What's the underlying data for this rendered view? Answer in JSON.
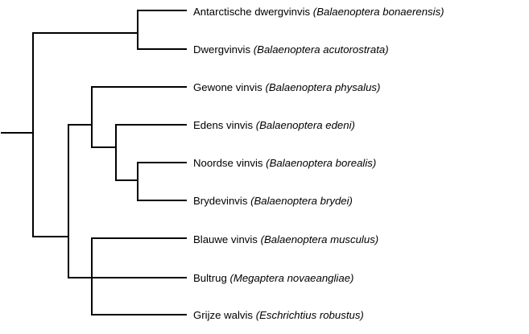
{
  "tree": {
    "line_color": "#000000",
    "leaves": [
      {
        "common": "Antarctische dwergvinvis",
        "scientific": "(Balaenoptera bonaerensis)"
      },
      {
        "common": "Dwergvinvis",
        "scientific": "(Balaenoptera acutorostrata)"
      },
      {
        "common": "Gewone vinvis",
        "scientific": "(Balaenoptera physalus)"
      },
      {
        "common": "Edens vinvis",
        "scientific": "(Balaenoptera edeni)"
      },
      {
        "common": "Noordse vinvis",
        "scientific": "(Balaenoptera borealis)"
      },
      {
        "common": "Brydevinvis",
        "scientific": "(Balaenoptera brydei)"
      },
      {
        "common": "Blauwe vinvis",
        "scientific": "(Balaenoptera musculus)"
      },
      {
        "common": "Bultrug",
        "scientific": "(Megaptera novaeangliae)"
      },
      {
        "common": "Grijze walvis",
        "scientific": "(Eschrichtius robustus)"
      }
    ]
  }
}
